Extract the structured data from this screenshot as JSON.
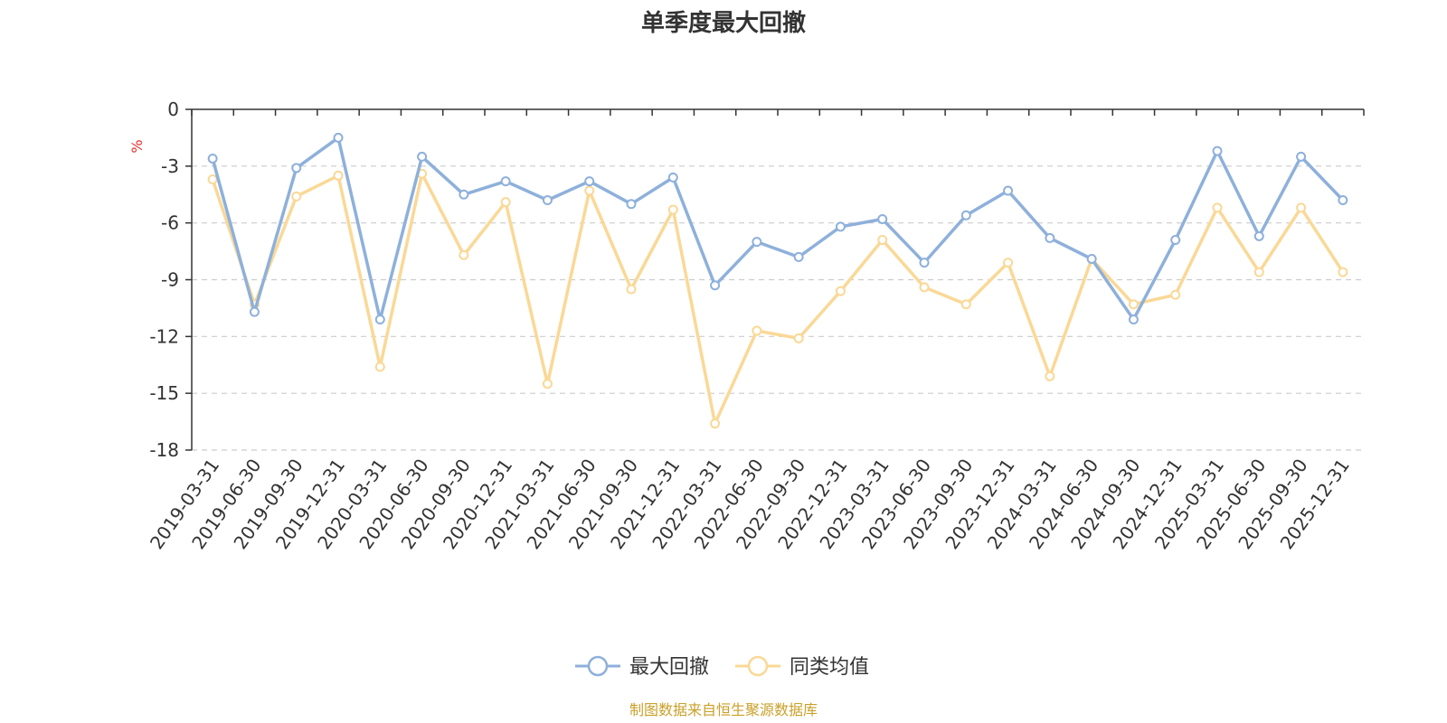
{
  "chart_data": {
    "type": "line",
    "title": "单季度最大回撤",
    "ylabel": "%",
    "ylim": [
      -18,
      0
    ],
    "yticks": [
      0,
      -3,
      -6,
      -9,
      -12,
      -15,
      -18
    ],
    "grid": true,
    "legend_position": "bottom-center",
    "x": [
      "2019-03-31",
      "2019-06-30",
      "2019-09-30",
      "2019-12-31",
      "2020-03-31",
      "2020-06-30",
      "2020-09-30",
      "2020-12-31",
      "2021-03-31",
      "2021-06-30",
      "2021-09-30",
      "2021-12-31",
      "2022-03-31",
      "2022-06-30",
      "2022-09-30",
      "2022-12-31",
      "2023-03-31",
      "2023-06-30",
      "2023-09-30",
      "2023-12-31",
      "2024-03-31",
      "2024-06-30",
      "2024-09-30",
      "2024-12-31",
      "2025-03-31",
      "2025-06-30",
      "2025-09-30",
      "2025-12-31"
    ],
    "series": [
      {
        "name": "最大回撤",
        "color": "#8eb0db",
        "values": [
          -2.6,
          -10.7,
          -3.1,
          -1.5,
          -11.1,
          -2.5,
          -4.5,
          -3.8,
          -4.8,
          -3.8,
          -5.0,
          -3.6,
          -9.3,
          -7.0,
          -7.8,
          -6.2,
          -5.8,
          -8.1,
          -5.6,
          -4.3,
          -6.8,
          -7.9,
          -11.1,
          -6.9,
          -2.2,
          -6.7,
          -2.5,
          -4.8
        ]
      },
      {
        "name": "同类均值",
        "color": "#fad896",
        "values": [
          -3.7,
          -10.3,
          -4.6,
          -3.5,
          -13.6,
          -3.4,
          -7.7,
          -4.9,
          -14.5,
          -4.3,
          -9.5,
          -5.3,
          -16.6,
          -11.7,
          -12.1,
          -9.6,
          -6.9,
          -9.4,
          -10.3,
          -8.1,
          -14.1,
          -7.9,
          -10.3,
          -9.8,
          -5.2,
          -8.6,
          -5.2,
          -8.6
        ]
      }
    ]
  },
  "colors": {
    "axis": "#333333",
    "grid": "#cccccc",
    "unit": "#e8312e",
    "source": "#c9a02a"
  },
  "footer": {
    "source": "制图数据来自恒生聚源数据库"
  }
}
